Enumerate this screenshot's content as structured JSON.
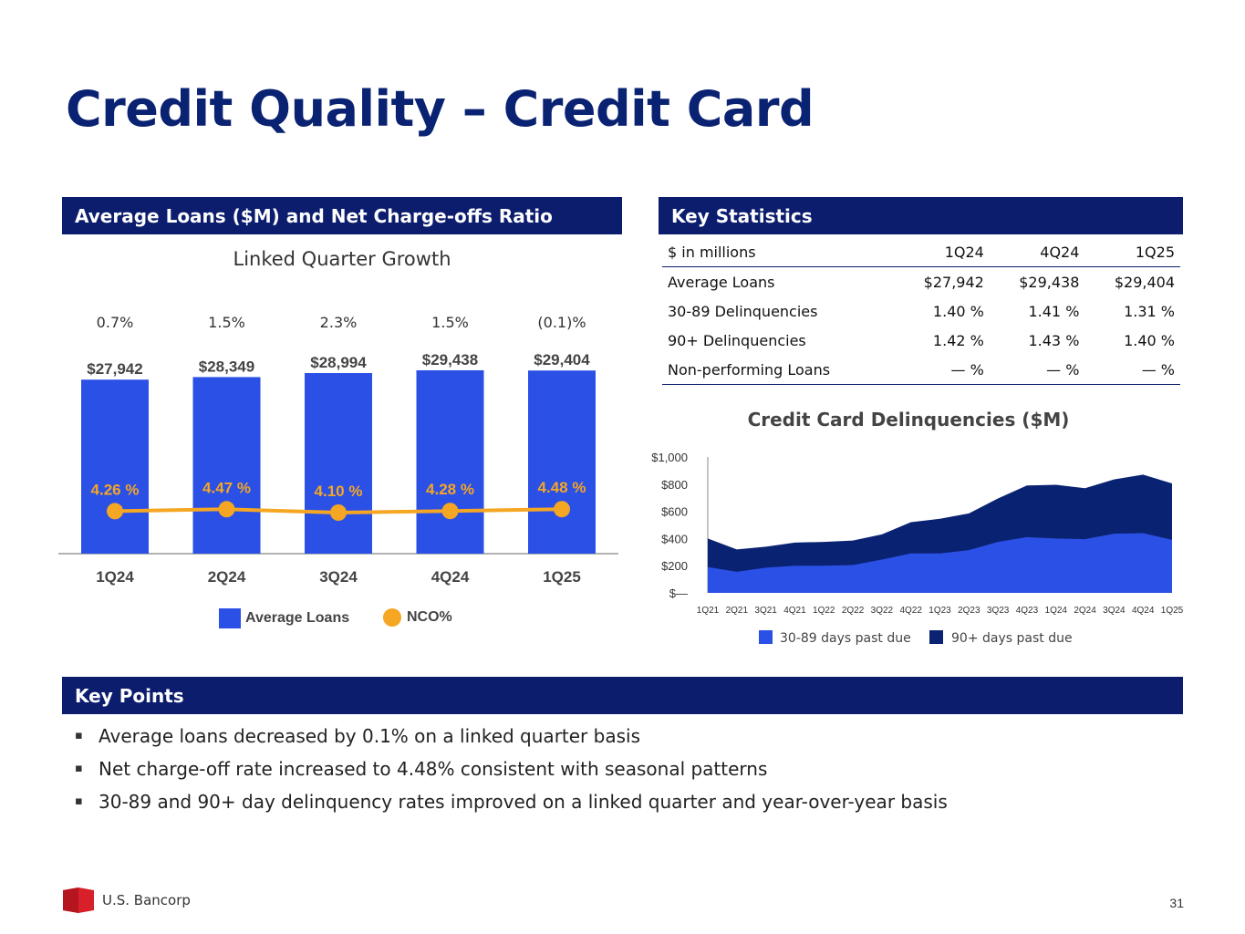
{
  "page": {
    "title": "Credit Quality – Credit Card",
    "page_number": "31",
    "logo_text": "U.S. Bancorp"
  },
  "left_panel": {
    "header": "Average Loans ($M) and Net Charge-offs Ratio",
    "subtitle": "Linked Quarter Growth",
    "legend": {
      "bars": "Average Loans",
      "line": "NCO%"
    }
  },
  "right_panel": {
    "header": "Key Statistics",
    "table": {
      "columns": [
        "$ in millions",
        "1Q24",
        "4Q24",
        "1Q25"
      ],
      "rows": [
        [
          "Average Loans",
          "$27,942",
          "$29,438",
          "$29,404"
        ],
        [
          "30-89 Delinquencies",
          "1.40 %",
          "1.41 %",
          "1.31 %"
        ],
        [
          "90+ Delinquencies",
          "1.42 %",
          "1.43 %",
          "1.40 %"
        ],
        [
          "Non-performing Loans",
          "— %",
          "— %",
          "— %"
        ]
      ]
    }
  },
  "key_points": {
    "header": "Key Points",
    "items": [
      "Average loans decreased by 0.1% on a linked quarter basis",
      "Net charge-off rate increased to 4.48% consistent with seasonal patterns",
      "30-89 and 90+ day delinquency rates improved on a linked quarter and year-over-year basis"
    ]
  },
  "colors": {
    "navy": "#0c1d6e",
    "bar_blue": "#2b50e6",
    "nco_orange": "#f5a623",
    "dark_area": "#0a2272",
    "light_area": "#2b50e6"
  },
  "chart_data": [
    {
      "type": "bar",
      "title": "Average Loans ($M) and Net Charge-offs Ratio",
      "categories": [
        "1Q24",
        "2Q24",
        "3Q24",
        "4Q24",
        "1Q25"
      ],
      "series": [
        {
          "name": "Average Loans",
          "values": [
            27942,
            28349,
            28994,
            29438,
            29404
          ],
          "labels": [
            "$27,942",
            "$28,349",
            "$28,994",
            "$29,438",
            "$29,404"
          ]
        },
        {
          "name": "NCO%",
          "values": [
            4.26,
            4.47,
            4.1,
            4.28,
            4.48
          ],
          "labels": [
            "4.26 %",
            "4.47 %",
            "4.10 %",
            "4.28 %",
            "4.48 %"
          ]
        }
      ],
      "growth_labels": [
        "0.7%",
        "1.5%",
        "2.3%",
        "1.5%",
        "(0.1)%"
      ]
    },
    {
      "type": "area",
      "title": "Credit Card Delinquencies ($M)",
      "stacked": true,
      "x": [
        "1Q21",
        "2Q21",
        "3Q21",
        "4Q21",
        "1Q22",
        "2Q22",
        "3Q22",
        "4Q22",
        "1Q23",
        "2Q23",
        "3Q23",
        "4Q23",
        "1Q24",
        "2Q24",
        "3Q24",
        "4Q24",
        "1Q25"
      ],
      "series": [
        {
          "name": "30-89 days past due",
          "values": [
            190,
            155,
            185,
            200,
            200,
            205,
            245,
            290,
            290,
            315,
            375,
            410,
            400,
            395,
            435,
            440,
            390
          ]
        },
        {
          "name": "90+ days past due",
          "values": [
            210,
            165,
            155,
            170,
            175,
            180,
            185,
            230,
            255,
            270,
            320,
            380,
            395,
            375,
            400,
            430,
            415
          ]
        }
      ],
      "ylim": [
        0,
        1000
      ],
      "ytick_labels": [
        "$—",
        "$200",
        "$400",
        "$600",
        "$800",
        "$1,000"
      ],
      "ytick_values": [
        0,
        200,
        400,
        600,
        800,
        1000
      ]
    }
  ]
}
